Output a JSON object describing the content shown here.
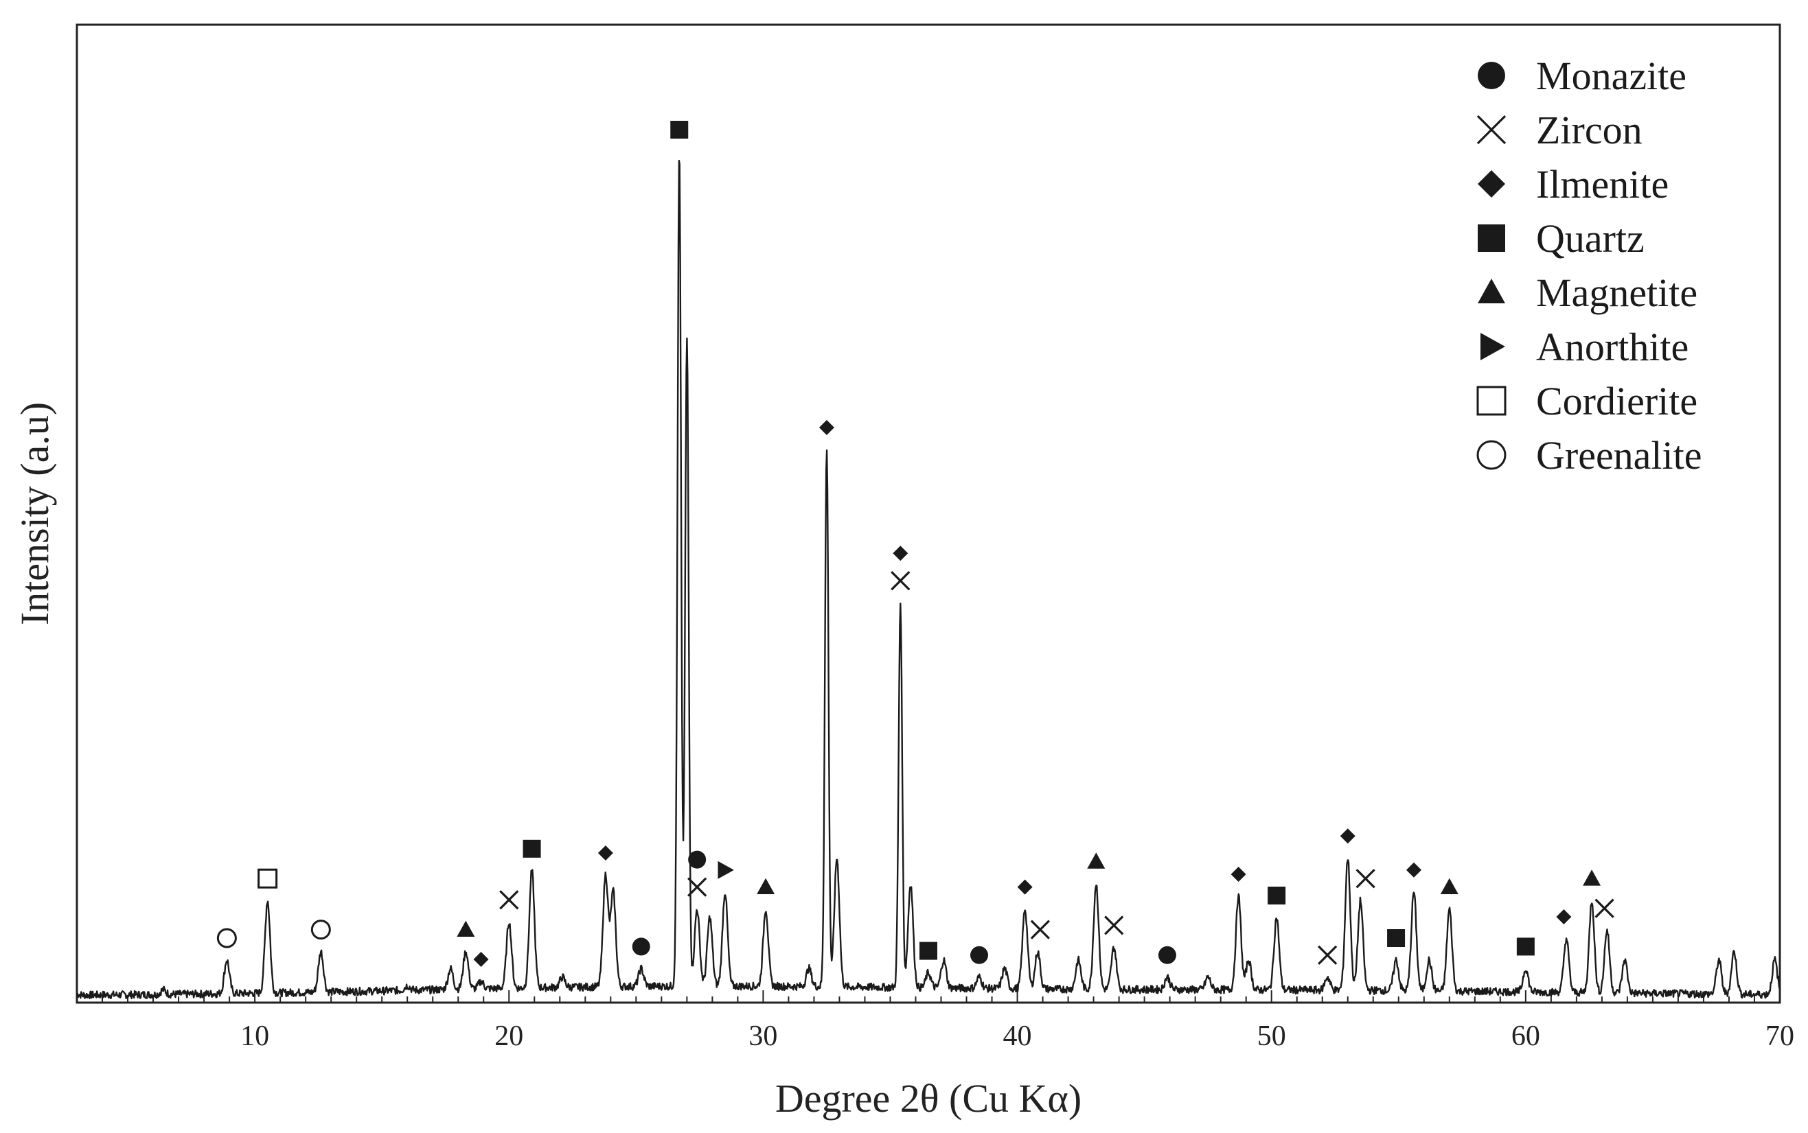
{
  "chart_data": {
    "type": "line",
    "title": "",
    "xlabel": "Degree 2θ (Cu Kα)",
    "ylabel": "Intensity (a.u)",
    "xlim": [
      3,
      70
    ],
    "ylim": [
      0,
      100
    ],
    "y_ticks_shown": false,
    "x_ticks": [
      10,
      20,
      30,
      40,
      50,
      60,
      70
    ],
    "x_tick_labels": [
      "10",
      "20",
      "30",
      "40",
      "50",
      "60",
      "70"
    ],
    "grid": false,
    "legend_position": "top-right",
    "series": [
      {
        "x": [
          3,
          6.4,
          8.9,
          10.5,
          12.6,
          16,
          17.7,
          18.3,
          18.9,
          20,
          20.9,
          22.1,
          23.8,
          24.1,
          25.2,
          26.7,
          27,
          27.4,
          27.9,
          28.5,
          30.1,
          31.8,
          32.5,
          32.9,
          35.4,
          35.8,
          36.5,
          37.1,
          38.5,
          39.5,
          40.3,
          40.8,
          42.4,
          43.1,
          43.8,
          45.9,
          47.5,
          48.7,
          49.1,
          50.2,
          52.2,
          53,
          53.5,
          54.9,
          55.6,
          56.2,
          57,
          60,
          61.6,
          62.6,
          63.2,
          63.9,
          67.6,
          68.2,
          69.8
        ],
        "y": [
          1,
          1.5,
          5,
          12,
          6,
          2,
          4,
          6,
          2.5,
          9.5,
          15.5,
          3,
          15,
          13,
          4,
          100,
          78,
          11,
          10,
          13,
          11,
          4,
          65,
          17,
          47,
          14,
          3.5,
          5,
          3,
          4,
          11,
          6,
          5,
          14,
          6.5,
          3,
          3,
          12.5,
          5,
          10,
          3,
          17,
          12,
          5,
          13,
          5,
          11,
          4,
          7.5,
          12,
          8.5,
          5,
          5,
          6,
          5
        ]
      }
    ],
    "peak_annotations": [
      {
        "phase": "Greenalite",
        "x": 8.9
      },
      {
        "phase": "Cordierite",
        "x": 10.5
      },
      {
        "phase": "Greenalite",
        "x": 12.6
      },
      {
        "phase": "Magnetite",
        "x": 18.3
      },
      {
        "phase": "Ilmenite",
        "x": 18.9
      },
      {
        "phase": "Zircon",
        "x": 20
      },
      {
        "phase": "Quartz",
        "x": 20.9
      },
      {
        "phase": "Ilmenite",
        "x": 23.8
      },
      {
        "phase": "Monazite",
        "x": 25.2
      },
      {
        "phase": "Quartz",
        "x": 26.7
      },
      {
        "phase": "Zircon",
        "x": 27.4
      },
      {
        "phase": "Monazite",
        "x": 27.4
      },
      {
        "phase": "Anorthite",
        "x": 28.5
      },
      {
        "phase": "Magnetite",
        "x": 30.1
      },
      {
        "phase": "Ilmenite",
        "x": 32.5
      },
      {
        "phase": "Zircon",
        "x": 35.4
      },
      {
        "phase": "Ilmenite",
        "x": 35.4
      },
      {
        "phase": "Quartz",
        "x": 36.5
      },
      {
        "phase": "Monazite",
        "x": 38.5
      },
      {
        "phase": "Ilmenite",
        "x": 40.3
      },
      {
        "phase": "Zircon",
        "x": 40.9
      },
      {
        "phase": "Magnetite",
        "x": 43.1
      },
      {
        "phase": "Zircon",
        "x": 43.8
      },
      {
        "phase": "Monazite",
        "x": 45.9
      },
      {
        "phase": "Ilmenite",
        "x": 48.7
      },
      {
        "phase": "Quartz",
        "x": 50.2
      },
      {
        "phase": "Zircon",
        "x": 52.2
      },
      {
        "phase": "Ilmenite",
        "x": 53
      },
      {
        "phase": "Zircon",
        "x": 53.7
      },
      {
        "phase": "Quartz",
        "x": 54.9
      },
      {
        "phase": "Ilmenite",
        "x": 55.6
      },
      {
        "phase": "Magnetite",
        "x": 57
      },
      {
        "phase": "Quartz",
        "x": 60
      },
      {
        "phase": "Ilmenite",
        "x": 61.5
      },
      {
        "phase": "Magnetite",
        "x": 62.6
      },
      {
        "phase": "Zircon",
        "x": 63.1
      }
    ]
  },
  "legend": [
    {
      "name": "Monazite",
      "marker": "filled-circle"
    },
    {
      "name": "Zircon",
      "marker": "cross"
    },
    {
      "name": "Ilmenite",
      "marker": "filled-diamond"
    },
    {
      "name": "Quartz",
      "marker": "filled-square"
    },
    {
      "name": "Magnetite",
      "marker": "filled-triangle-up"
    },
    {
      "name": "Anorthite",
      "marker": "filled-triangle-right"
    },
    {
      "name": "Cordierite",
      "marker": "open-square"
    },
    {
      "name": "Greenalite",
      "marker": "open-circle"
    }
  ],
  "colors": {
    "line": "#1a1a1a",
    "marker": "#1a1a1a",
    "axis": "#222222",
    "background": "#ffffff"
  }
}
